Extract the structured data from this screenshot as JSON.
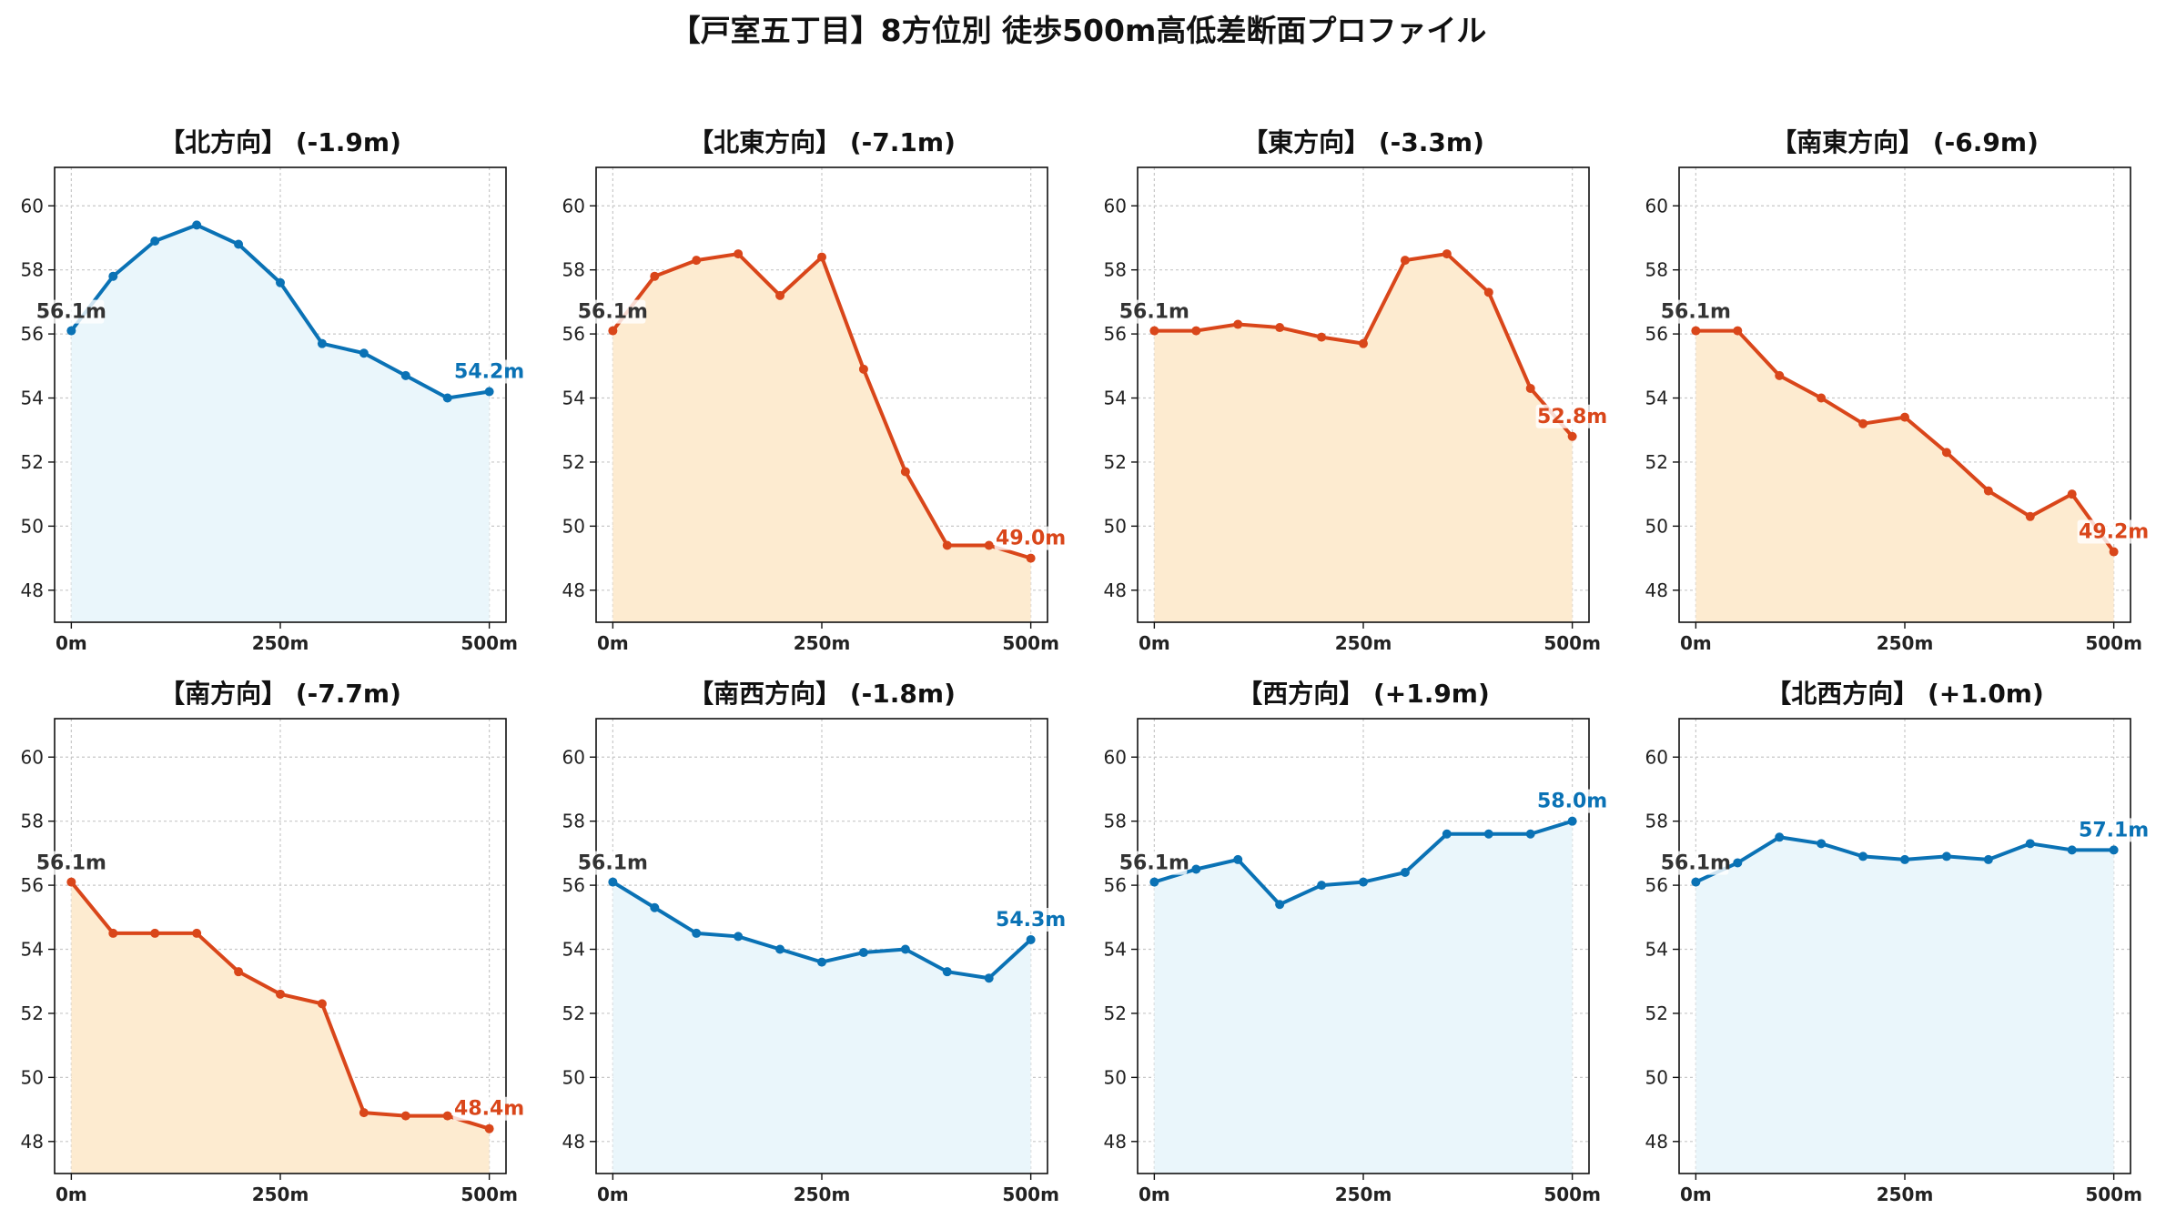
{
  "suptitle": "【戸室五丁目】8方位別 徒歩500m高低差断面プロファイル",
  "colors": {
    "up_line": "#0a72b5",
    "up_fill": "#eaf6fb",
    "down_line": "#d9461a",
    "down_fill": "#fdebd0",
    "start_label": "#333333",
    "grid": "#c8c8c8"
  },
  "chart_data": [
    {
      "type": "area",
      "title": "【北方向】 (-1.9m)",
      "trend": "up",
      "x": [
        0,
        50,
        100,
        150,
        200,
        250,
        300,
        350,
        400,
        450,
        500
      ],
      "y": [
        56.1,
        57.8,
        58.9,
        59.4,
        58.8,
        57.6,
        55.7,
        55.4,
        54.7,
        54.0,
        54.2
      ],
      "start_label": "56.1m",
      "end_label": "54.2m",
      "xlim": [
        -20,
        520
      ],
      "ylim": [
        47,
        61.2
      ],
      "xticks": [
        0,
        250,
        500
      ],
      "xticklabels": [
        "0m",
        "250m",
        "500m"
      ],
      "yticks": [
        48,
        50,
        52,
        54,
        56,
        58,
        60
      ],
      "yticklabels": [
        "48",
        "50",
        "52",
        "54",
        "56",
        "58",
        "60"
      ],
      "grid": true
    },
    {
      "type": "area",
      "title": "【北東方向】 (-7.1m)",
      "trend": "down",
      "x": [
        0,
        50,
        100,
        150,
        200,
        250,
        300,
        350,
        400,
        450,
        500
      ],
      "y": [
        56.1,
        57.8,
        58.3,
        58.5,
        57.2,
        58.4,
        54.9,
        51.7,
        49.4,
        49.4,
        49.0
      ],
      "start_label": "56.1m",
      "end_label": "49.0m",
      "xlim": [
        -20,
        520
      ],
      "ylim": [
        47,
        61.2
      ],
      "xticks": [
        0,
        250,
        500
      ],
      "xticklabels": [
        "0m",
        "250m",
        "500m"
      ],
      "yticks": [
        48,
        50,
        52,
        54,
        56,
        58,
        60
      ],
      "yticklabels": [
        "48",
        "50",
        "52",
        "54",
        "56",
        "58",
        "60"
      ],
      "grid": true
    },
    {
      "type": "area",
      "title": "【東方向】 (-3.3m)",
      "trend": "down",
      "x": [
        0,
        50,
        100,
        150,
        200,
        250,
        300,
        350,
        400,
        450,
        500
      ],
      "y": [
        56.1,
        56.1,
        56.3,
        56.2,
        55.9,
        55.7,
        58.3,
        58.5,
        57.3,
        54.3,
        52.8
      ],
      "start_label": "56.1m",
      "end_label": "52.8m",
      "xlim": [
        -20,
        520
      ],
      "ylim": [
        47,
        61.2
      ],
      "xticks": [
        0,
        250,
        500
      ],
      "xticklabels": [
        "0m",
        "250m",
        "500m"
      ],
      "yticks": [
        48,
        50,
        52,
        54,
        56,
        58,
        60
      ],
      "yticklabels": [
        "48",
        "50",
        "52",
        "54",
        "56",
        "58",
        "60"
      ],
      "grid": true
    },
    {
      "type": "area",
      "title": "【南東方向】 (-6.9m)",
      "trend": "down",
      "x": [
        0,
        50,
        100,
        150,
        200,
        250,
        300,
        350,
        400,
        450,
        500
      ],
      "y": [
        56.1,
        56.1,
        54.7,
        54.0,
        53.2,
        53.4,
        52.3,
        51.1,
        50.3,
        51.0,
        49.2
      ],
      "start_label": "56.1m",
      "end_label": "49.2m",
      "xlim": [
        -20,
        520
      ],
      "ylim": [
        47,
        61.2
      ],
      "xticks": [
        0,
        250,
        500
      ],
      "xticklabels": [
        "0m",
        "250m",
        "500m"
      ],
      "yticks": [
        48,
        50,
        52,
        54,
        56,
        58,
        60
      ],
      "yticklabels": [
        "48",
        "50",
        "52",
        "54",
        "56",
        "58",
        "60"
      ],
      "grid": true
    },
    {
      "type": "area",
      "title": "【南方向】 (-7.7m)",
      "trend": "down",
      "x": [
        0,
        50,
        100,
        150,
        200,
        250,
        300,
        350,
        400,
        450,
        500
      ],
      "y": [
        56.1,
        54.5,
        54.5,
        54.5,
        53.3,
        52.6,
        52.3,
        48.9,
        48.8,
        48.8,
        48.4
      ],
      "start_label": "56.1m",
      "end_label": "48.4m",
      "xlim": [
        -20,
        520
      ],
      "ylim": [
        47,
        61.2
      ],
      "xticks": [
        0,
        250,
        500
      ],
      "xticklabels": [
        "0m",
        "250m",
        "500m"
      ],
      "yticks": [
        48,
        50,
        52,
        54,
        56,
        58,
        60
      ],
      "yticklabels": [
        "48",
        "50",
        "52",
        "54",
        "56",
        "58",
        "60"
      ],
      "grid": true
    },
    {
      "type": "area",
      "title": "【南西方向】 (-1.8m)",
      "trend": "up",
      "x": [
        0,
        50,
        100,
        150,
        200,
        250,
        300,
        350,
        400,
        450,
        500
      ],
      "y": [
        56.1,
        55.3,
        54.5,
        54.4,
        54.0,
        53.6,
        53.9,
        54.0,
        53.3,
        53.1,
        54.3
      ],
      "start_label": "56.1m",
      "end_label": "54.3m",
      "xlim": [
        -20,
        520
      ],
      "ylim": [
        47,
        61.2
      ],
      "xticks": [
        0,
        250,
        500
      ],
      "xticklabels": [
        "0m",
        "250m",
        "500m"
      ],
      "yticks": [
        48,
        50,
        52,
        54,
        56,
        58,
        60
      ],
      "yticklabels": [
        "48",
        "50",
        "52",
        "54",
        "56",
        "58",
        "60"
      ],
      "grid": true
    },
    {
      "type": "area",
      "title": "【西方向】 (+1.9m)",
      "trend": "up",
      "x": [
        0,
        50,
        100,
        150,
        200,
        250,
        300,
        350,
        400,
        450,
        500
      ],
      "y": [
        56.1,
        56.5,
        56.8,
        55.4,
        56.0,
        56.1,
        56.4,
        57.6,
        57.6,
        57.6,
        58.0
      ],
      "start_label": "56.1m",
      "end_label": "58.0m",
      "xlim": [
        -20,
        520
      ],
      "ylim": [
        47,
        61.2
      ],
      "xticks": [
        0,
        250,
        500
      ],
      "xticklabels": [
        "0m",
        "250m",
        "500m"
      ],
      "yticks": [
        48,
        50,
        52,
        54,
        56,
        58,
        60
      ],
      "yticklabels": [
        "48",
        "50",
        "52",
        "54",
        "56",
        "58",
        "60"
      ],
      "grid": true
    },
    {
      "type": "area",
      "title": "【北西方向】 (+1.0m)",
      "trend": "up",
      "x": [
        0,
        50,
        100,
        150,
        200,
        250,
        300,
        350,
        400,
        450,
        500
      ],
      "y": [
        56.1,
        56.7,
        57.5,
        57.3,
        56.9,
        56.8,
        56.9,
        56.8,
        57.3,
        57.1,
        57.1
      ],
      "start_label": "56.1m",
      "end_label": "57.1m",
      "xlim": [
        -20,
        520
      ],
      "ylim": [
        47,
        61.2
      ],
      "xticks": [
        0,
        250,
        500
      ],
      "xticklabels": [
        "0m",
        "250m",
        "500m"
      ],
      "yticks": [
        48,
        50,
        52,
        54,
        56,
        58,
        60
      ],
      "yticklabels": [
        "48",
        "50",
        "52",
        "54",
        "56",
        "58",
        "60"
      ],
      "grid": true
    }
  ]
}
